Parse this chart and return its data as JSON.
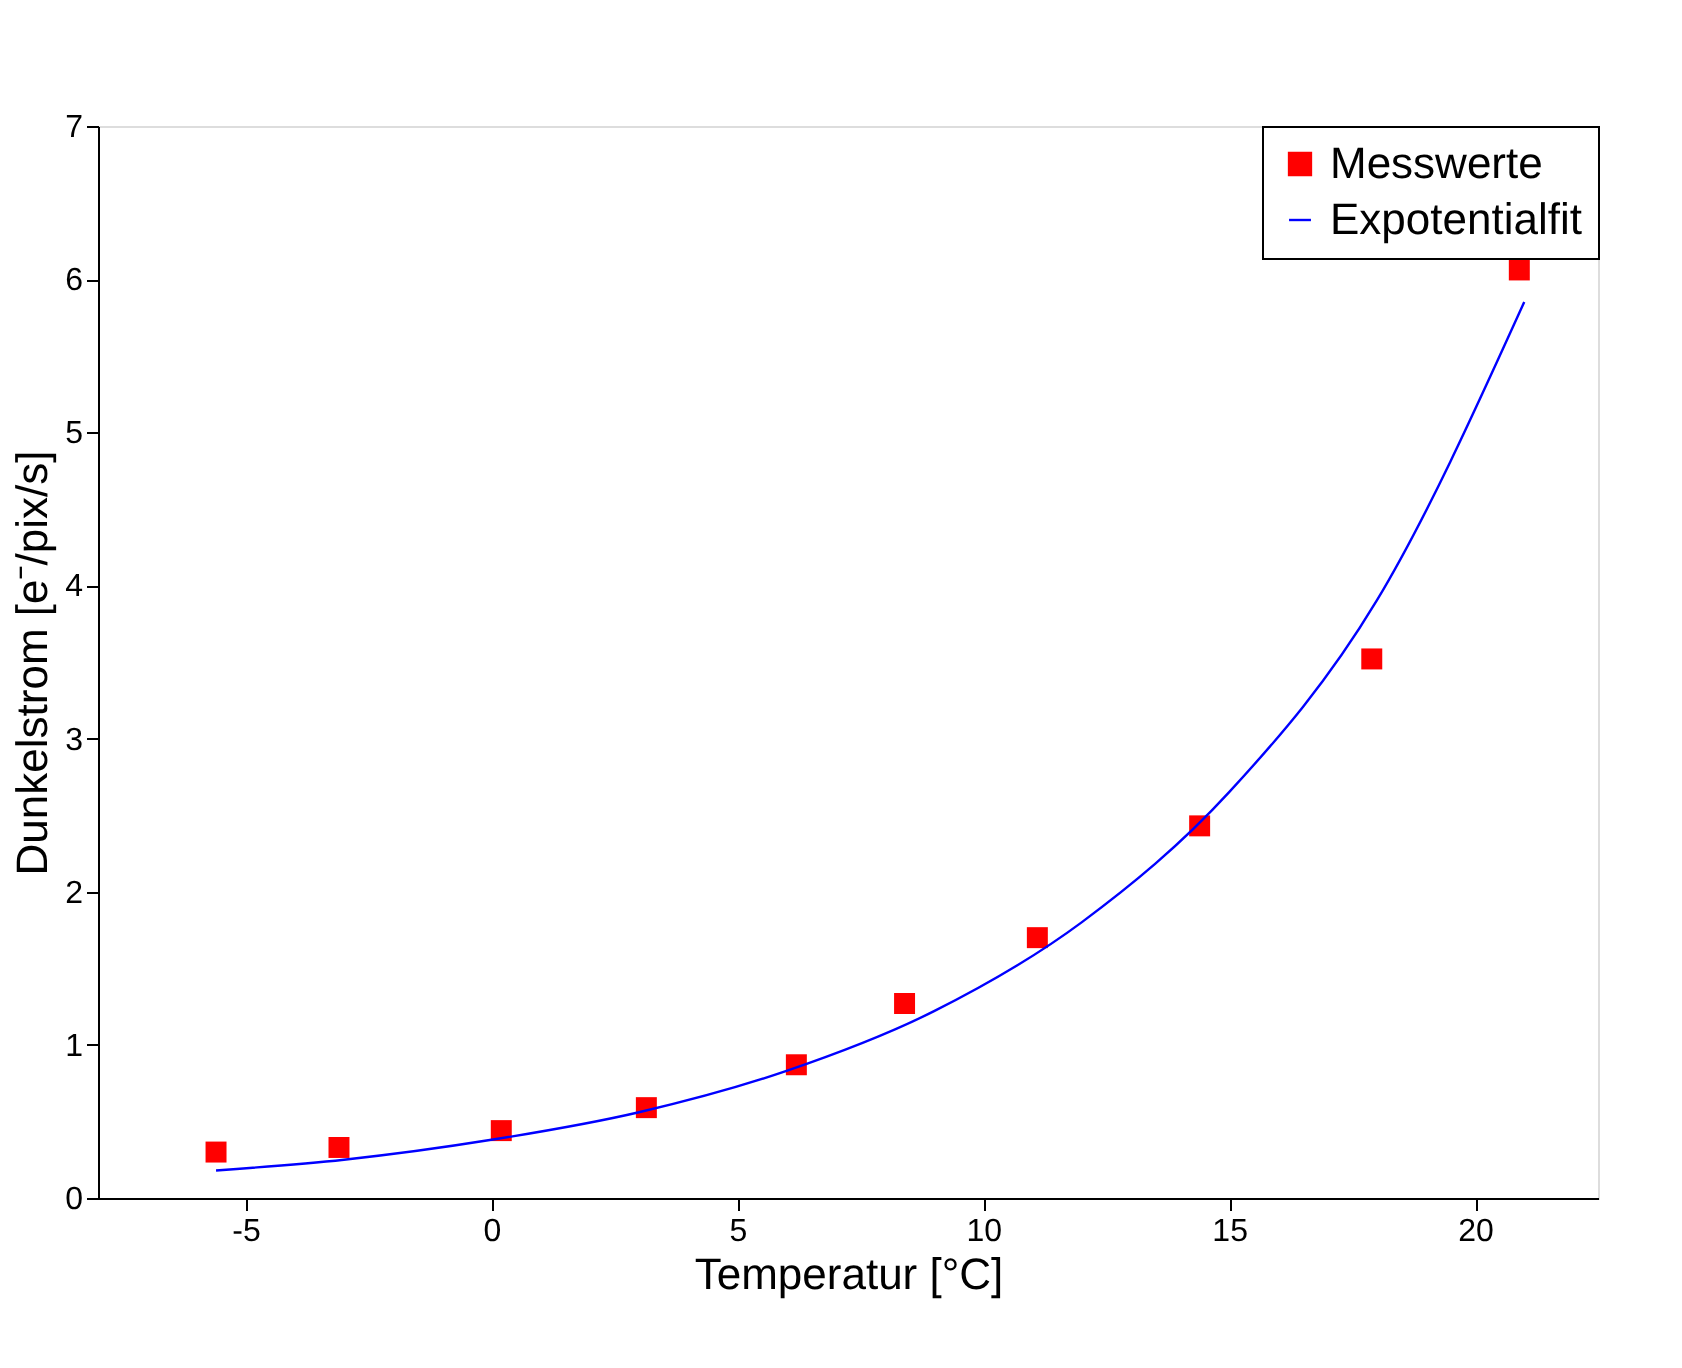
{
  "chart_data": {
    "type": "scatter",
    "xlabel": "Temperatur [°C]",
    "ylabel": "Dunkelstrom [e⁻/pix/s]",
    "xlim": [
      -8,
      22.5
    ],
    "xticks": [
      -5,
      0,
      5,
      10,
      15,
      20
    ],
    "ylim": [
      0,
      7
    ],
    "yticks": [
      0,
      1,
      2,
      3,
      4,
      5,
      6,
      7
    ],
    "grid": false,
    "legend": "top right",
    "series": [
      {
        "name": "Messwerte",
        "marker": "square",
        "color": "#ff0000",
        "x": [
          -5.6,
          -3.1,
          0.2,
          3.15,
          6.2,
          8.4,
          11.1,
          14.4,
          17.9,
          20.9
        ],
        "values": [
          0.3,
          0.33,
          0.44,
          0.59,
          0.87,
          1.27,
          1.7,
          2.43,
          3.52,
          6.06
        ]
      },
      {
        "name": "Expotentialfit",
        "type": "line",
        "line_style": "solid",
        "color": "#0000ff",
        "x": [
          -5.6,
          -3,
          0,
          3,
          6,
          9,
          12,
          15,
          18,
          21
        ],
        "values": [
          0.18,
          0.25,
          0.38,
          0.56,
          0.83,
          1.22,
          1.8,
          2.65,
          3.9,
          5.85
        ]
      }
    ]
  }
}
